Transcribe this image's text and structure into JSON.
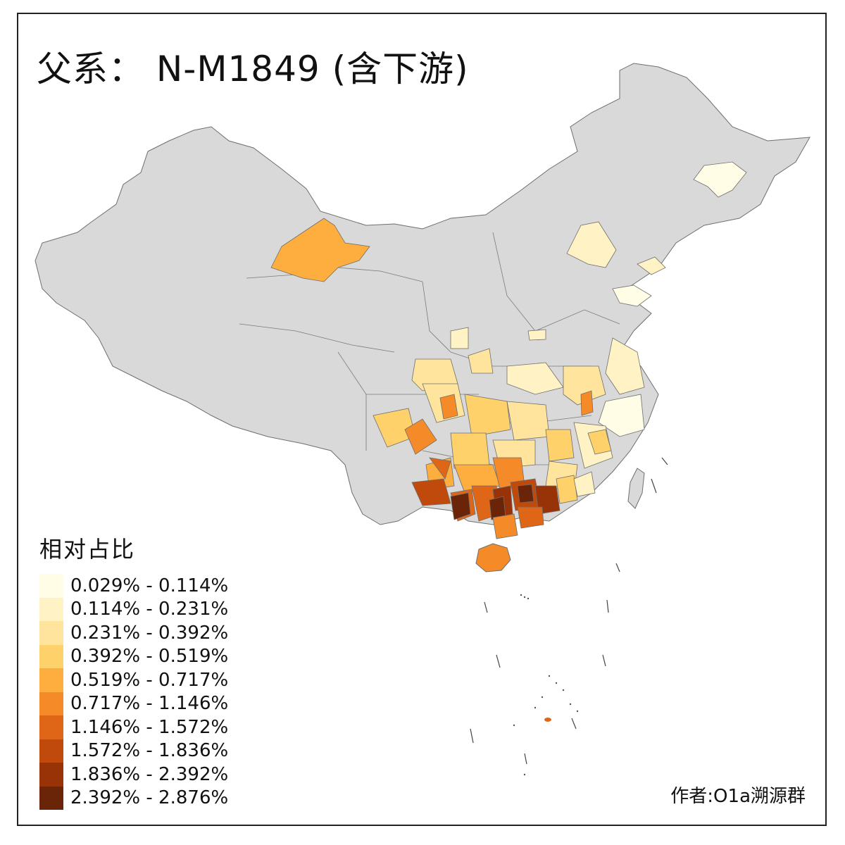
{
  "title": "父系： N-M1849 (含下游)",
  "legend": {
    "title": "相对占比",
    "items": [
      {
        "label": "0.029% - 0.114%",
        "color": "#fffde6"
      },
      {
        "label": "0.114% - 0.231%",
        "color": "#fff2c4"
      },
      {
        "label": "0.231% - 0.392%",
        "color": "#fee49c"
      },
      {
        "label": "0.392% - 0.519%",
        "color": "#fed16b"
      },
      {
        "label": "0.519% - 0.717%",
        "color": "#feae3f"
      },
      {
        "label": "0.717% - 1.146%",
        "color": "#f58a29"
      },
      {
        "label": "1.146% - 1.572%",
        "color": "#e06617"
      },
      {
        "label": "1.572% - 1.836%",
        "color": "#c04a0c"
      },
      {
        "label": "1.836% - 2.392%",
        "color": "#983307"
      },
      {
        "label": "2.392% - 2.876%",
        "color": "#6a2408"
      }
    ]
  },
  "author": "作者:O1a溯源群",
  "colors": {
    "land": "#d9d9d9",
    "border": "#6e6e6e",
    "frame": "#222222"
  }
}
